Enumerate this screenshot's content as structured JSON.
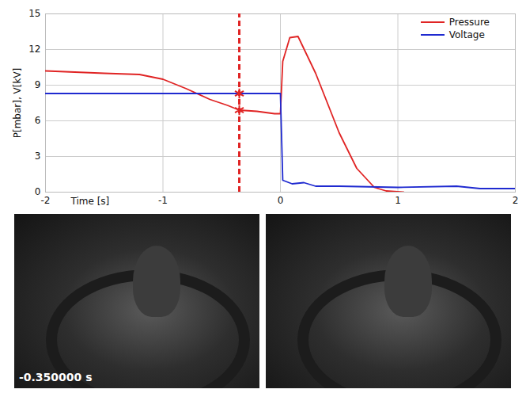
{
  "chart_data": {
    "type": "line",
    "xlabel": "Time [s]",
    "ylabel": "P[mbar], V[kV]",
    "xlim": [
      -2,
      2
    ],
    "xticks": [
      -2,
      -1,
      0,
      1,
      2
    ],
    "ylim": [
      0,
      15
    ],
    "yticks": [
      0,
      3,
      6,
      9,
      12,
      15
    ],
    "grid": true,
    "legend": "top-right",
    "series": [
      {
        "name": "Pressure",
        "color": "#e02424",
        "x": [
          -2,
          -1.5,
          -1.2,
          -1,
          -0.8,
          -0.6,
          -0.45,
          -0.35,
          -0.2,
          -0.05,
          0,
          0.02,
          0.08,
          0.15,
          0.3,
          0.5,
          0.65,
          0.8,
          0.9,
          1.05
        ],
        "values": [
          10.2,
          10.0,
          9.9,
          9.5,
          8.7,
          7.8,
          7.3,
          6.9,
          6.8,
          6.6,
          6.6,
          11.0,
          13.0,
          13.1,
          10.0,
          5.0,
          2.0,
          0.4,
          0.1,
          0
        ]
      },
      {
        "name": "Voltage",
        "color": "#1f2ad0",
        "x": [
          -2,
          0,
          0.02,
          0.1,
          0.2,
          0.3,
          0.5,
          1.0,
          1.5,
          1.7,
          2
        ],
        "values": [
          8.3,
          8.3,
          1.0,
          0.7,
          0.8,
          0.5,
          0.5,
          0.4,
          0.5,
          0.3,
          0.3
        ]
      }
    ],
    "cursor": {
      "x": -0.35,
      "color": "#e02424",
      "line_style": "dashed",
      "marker": "asterisk",
      "values": [
        8.3,
        6.9
      ]
    }
  },
  "photos": {
    "count": 2,
    "timestamp": "-0.350000 s"
  }
}
